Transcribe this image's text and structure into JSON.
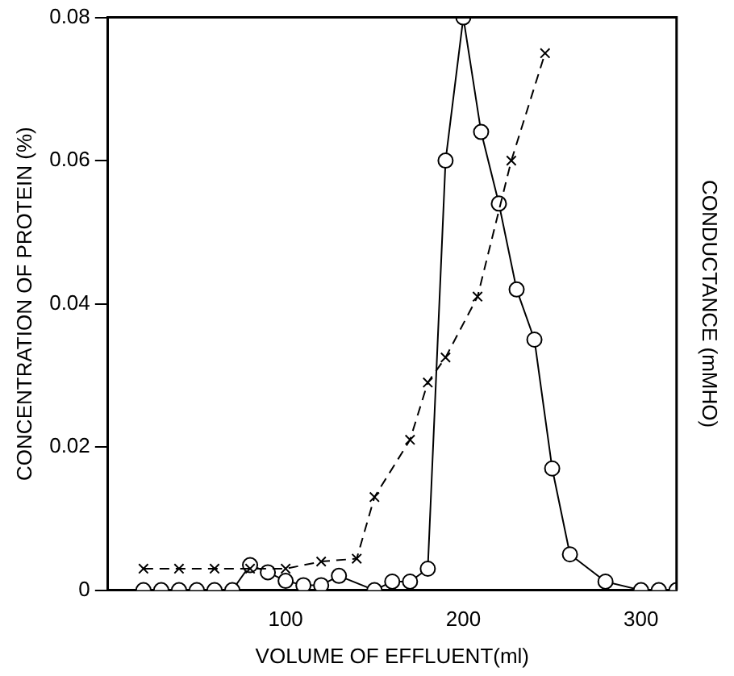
{
  "chart_data": {
    "type": "line",
    "xlabel": "VOLUME OF EFFLUENT(ml)",
    "ylabel": "CONCENTRATION OF PROTEIN (%)",
    "y2label": "CONDUCTANCE (mMHO)",
    "xlim": [
      0,
      320
    ],
    "xticks": [
      100,
      200,
      300
    ],
    "ylim": [
      0,
      0.08
    ],
    "yticks": [
      0,
      0.02,
      0.04,
      0.06,
      0.08
    ],
    "grid": false,
    "legend": false,
    "series": [
      {
        "color": "#000000",
        "marker": "circle",
        "line_style": "solid",
        "x": [
          20,
          30,
          40,
          50,
          60,
          70,
          80,
          90,
          100,
          110,
          120,
          130,
          150,
          160,
          170,
          180,
          190,
          200,
          210,
          220,
          230,
          240,
          250,
          260,
          280,
          300,
          310,
          320
        ],
        "values": [
          0,
          0,
          0,
          0,
          0,
          0,
          0.0035,
          0.0025,
          0.0013,
          0.0007,
          0.0007,
          0.002,
          0,
          0.0012,
          0.0012,
          0.003,
          0.06,
          0.08,
          0.064,
          0.054,
          0.042,
          0.035,
          0.017,
          0.005,
          0.0012,
          0,
          0,
          0
        ]
      },
      {
        "color": "#000000",
        "marker": "cross",
        "line_style": "dashed",
        "x": [
          20,
          40,
          60,
          80,
          100,
          120,
          140,
          150,
          170,
          180,
          190,
          208,
          227,
          246
        ],
        "values": [
          0.003,
          0.003,
          0.003,
          0.003,
          0.003,
          0.004,
          0.0044,
          0.013,
          0.021,
          0.029,
          0.0325,
          0.041,
          0.06,
          0.075
        ]
      }
    ]
  }
}
